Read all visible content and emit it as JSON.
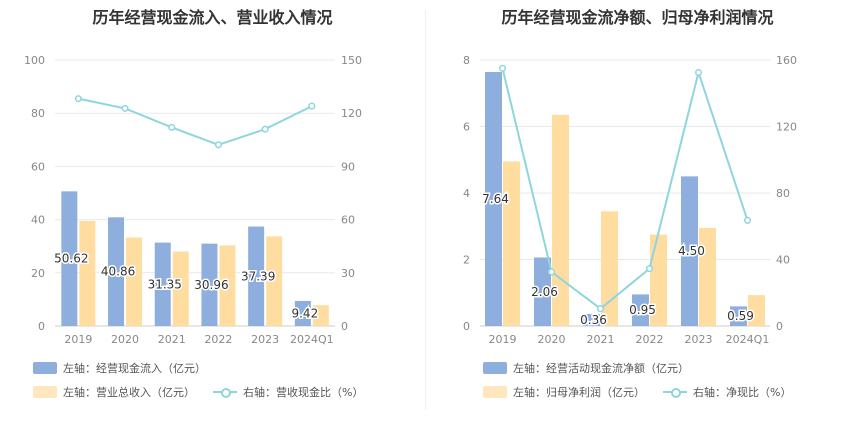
{
  "chart_data": [
    {
      "type": "bar",
      "title": "历年经营现金流入、营业收入情况",
      "categories": [
        "2019",
        "2020",
        "2021",
        "2022",
        "2023",
        "2024Q1"
      ],
      "left_axis": {
        "ylim": [
          0,
          100
        ],
        "ticks": [
          "0",
          "20",
          "40",
          "60",
          "80",
          "100"
        ]
      },
      "right_axis": {
        "ylim": [
          0,
          150
        ],
        "ticks": [
          "0",
          "30",
          "60",
          "90",
          "120",
          "150"
        ]
      },
      "series": [
        {
          "name": "左轴：经营现金流入（亿元）",
          "type": "bar",
          "axis": "left",
          "color": "#8eaedd",
          "values": [
            50.62,
            40.86,
            31.35,
            30.96,
            37.39,
            9.42
          ],
          "labels": [
            "50.62",
            "40.86",
            "31.35",
            "30.96",
            "37.39",
            "9.42"
          ]
        },
        {
          "name": "左轴：营业总收入（亿元）",
          "type": "bar",
          "axis": "left",
          "color": "#ffdda0",
          "values": [
            39.5,
            33.3,
            28.0,
            30.3,
            33.7,
            7.8
          ]
        },
        {
          "name": "右轴：营收现金比（%）",
          "type": "line",
          "axis": "right",
          "color": "#8fd6dc",
          "values": [
            128.2,
            122.7,
            112.0,
            102.2,
            111.0,
            124.0
          ]
        }
      ]
    },
    {
      "type": "bar",
      "title": "历年经营现金流净额、归母净利润情况",
      "categories": [
        "2019",
        "2020",
        "2021",
        "2022",
        "2023",
        "2024Q1"
      ],
      "left_axis": {
        "ylim": [
          0,
          8
        ],
        "ticks": [
          "0",
          "2",
          "4",
          "6",
          "8"
        ]
      },
      "right_axis": {
        "ylim": [
          0,
          160
        ],
        "ticks": [
          "0",
          "40",
          "80",
          "120",
          "160"
        ]
      },
      "series": [
        {
          "name": "左轴：经营活动现金流净额（亿元）",
          "type": "bar",
          "axis": "left",
          "color": "#8eaedd",
          "values": [
            7.64,
            2.06,
            0.36,
            0.95,
            4.5,
            0.59
          ],
          "labels": [
            "7.64",
            "2.06",
            "0.36",
            "0.95",
            "4.50",
            "0.59"
          ]
        },
        {
          "name": "左轴：归母净利润（亿元）",
          "type": "bar",
          "axis": "left",
          "color": "#ffdda0",
          "values": [
            4.95,
            6.35,
            3.45,
            2.75,
            2.95,
            0.93
          ]
        },
        {
          "name": "右轴：净现比（%）",
          "type": "line",
          "axis": "right",
          "color": "#8fd6dc",
          "values": [
            155.0,
            32.5,
            10.4,
            34.5,
            152.5,
            63.5
          ]
        }
      ]
    }
  ]
}
